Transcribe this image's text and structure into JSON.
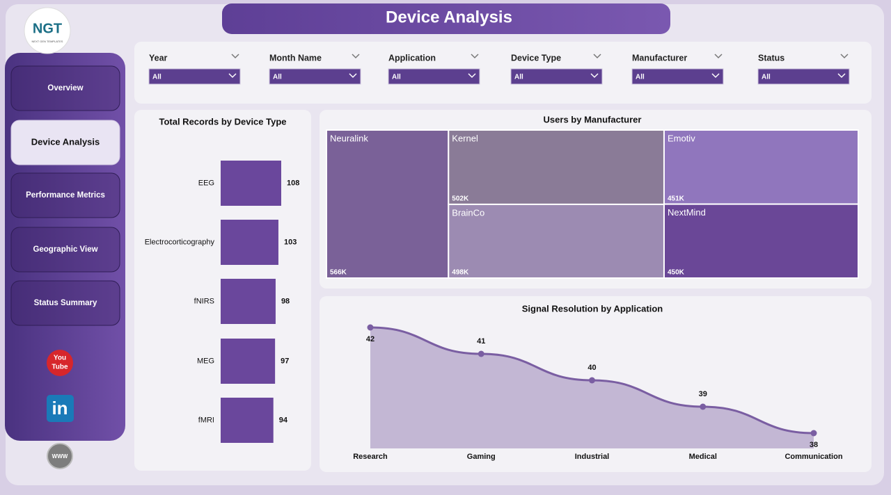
{
  "header": {
    "title": "Device Analysis"
  },
  "logo": {
    "text": "NGT",
    "subtext": "NEXT GEN TEMPLATES"
  },
  "nav": {
    "items": [
      "Overview",
      "Device Analysis",
      "Performance Metrics",
      "Geographic View",
      "Status Summary"
    ],
    "active_index": 1
  },
  "social": {
    "youtube": [
      "You",
      "Tube"
    ],
    "linkedin": "in",
    "website": "WWW"
  },
  "filters": [
    {
      "label": "Year",
      "value": "All"
    },
    {
      "label": "Month Name",
      "value": "All"
    },
    {
      "label": "Application",
      "value": "All"
    },
    {
      "label": "Device Type",
      "value": "All"
    },
    {
      "label": "Manufacturer",
      "value": "All"
    },
    {
      "label": "Status",
      "value": "All"
    }
  ],
  "chart_data": [
    {
      "type": "bar",
      "orientation": "horizontal",
      "title": "Total Records by Device Type",
      "categories": [
        "EEG",
        "Electrocorticography",
        "fNIRS",
        "MEG",
        "fMRI"
      ],
      "values": [
        108,
        103,
        98,
        97,
        94
      ],
      "color": "#6a479c"
    },
    {
      "type": "treemap",
      "title": "Users by Manufacturer",
      "categories": [
        "Neuralink",
        "Kernel",
        "Emotiv",
        "BrainCo",
        "NextMind"
      ],
      "values": [
        566000,
        502000,
        451000,
        498000,
        450000
      ],
      "value_labels": [
        "566K",
        "502K",
        "451K",
        "498K",
        "450K"
      ],
      "colors": [
        "#7a6198",
        "#8a7b97",
        "#9076bd",
        "#9c8bb2",
        "#6a4797"
      ]
    },
    {
      "type": "area",
      "title": "Signal Resolution by Application",
      "categories": [
        "Research",
        "Gaming",
        "Industrial",
        "Medical",
        "Communication"
      ],
      "values": [
        42,
        41,
        40,
        39,
        38
      ],
      "color": "#7a5ea2"
    }
  ]
}
